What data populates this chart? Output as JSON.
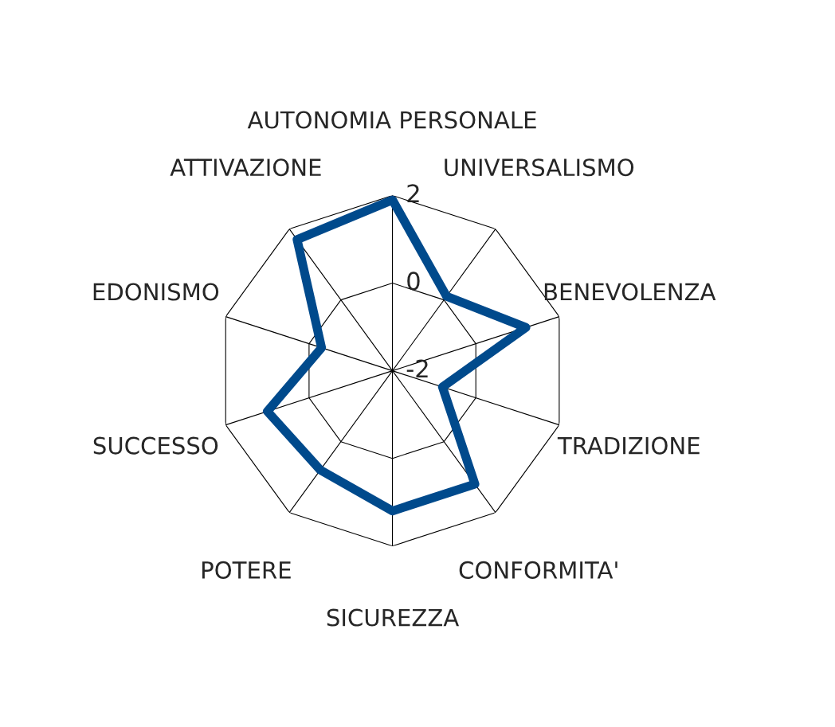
{
  "chart_data": {
    "type": "radar",
    "categories": [
      "AUTONOMIA PERSONALE",
      "UNIVERSALISMO",
      "BENEVOLENZA",
      "TRADIZIONE",
      "CONFORMITA'",
      "SICUREZZA",
      "POTERE",
      "SUCCESSO",
      "EDONISMO",
      "ATTIVAZIONE"
    ],
    "series": [
      {
        "color": "#004a8c",
        "values": [
          1.9,
          0.1,
          1.2,
          -0.8,
          1.2,
          1.2,
          0.8,
          1.0,
          -0.3,
          1.7
        ]
      }
    ],
    "ylim": [
      -2,
      2
    ],
    "yticks": [
      -2,
      0,
      2
    ],
    "grid": true,
    "marker": "none",
    "legend": false
  }
}
